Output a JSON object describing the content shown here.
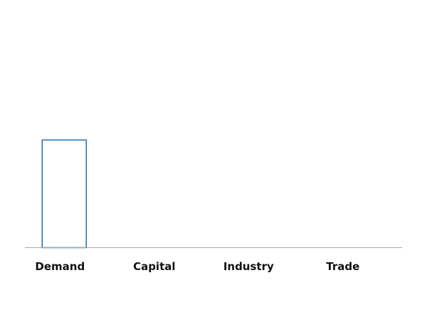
{
  "chart_data": {
    "type": "bar",
    "categories": [
      "Demand",
      "Capital",
      "Industry",
      "Trade"
    ],
    "values": [
      1,
      0,
      0,
      0
    ],
    "title": "",
    "xlabel": "",
    "ylabel": "",
    "ylim": [
      0,
      2.3
    ],
    "grid": false,
    "legend": "none",
    "style": {
      "bar_fill": "#ffffff",
      "bar_stroke": "#1f6fb5",
      "axis_color": "#a6a6a6",
      "label_color": "#111111"
    }
  }
}
